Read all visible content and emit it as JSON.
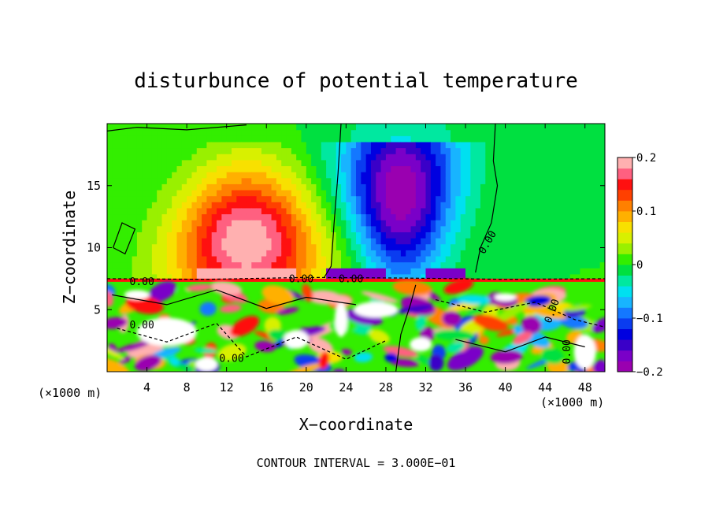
{
  "chart_data": {
    "type": "heatmap",
    "title": "disturbunce of potential temperature",
    "xlabel": "X−coordinate",
    "ylabel": "Z−coordinate",
    "x_unit_left": "(×1000 m)",
    "x_unit_right": "(×1000 m)",
    "xlim": [
      0,
      50
    ],
    "ylim": [
      0,
      20
    ],
    "x_ticks": [
      4,
      8,
      12,
      16,
      20,
      24,
      28,
      32,
      36,
      40,
      44,
      48
    ],
    "y_ticks": [
      5,
      10,
      15
    ],
    "colorbar": {
      "range": [
        -0.2,
        0.2
      ],
      "tick_values": [
        0.2,
        0.1,
        0,
        -0.1,
        -0.2
      ],
      "tick_labels": [
        "0.2",
        "0.1",
        "0",
        "−0.1",
        "−0.2"
      ],
      "levels": [
        "#9a00b0",
        "#7a00c8",
        "#3a00c8",
        "#0000e0",
        "#0a3cf0",
        "#1478ff",
        "#18b4ff",
        "#00e0f0",
        "#00e8a0",
        "#00e040",
        "#33ee00",
        "#99f000",
        "#d8f000",
        "#f8e000",
        "#ffb000",
        "#ff8000",
        "#ff4000",
        "#ff1010",
        "#ff6080",
        "#ffb0b0"
      ]
    },
    "contour_label": "0.00",
    "contour_interval_text": "CONTOUR INTERVAL = 3.000E−01",
    "features": [
      {
        "name": "warm anomaly",
        "x_center": 14,
        "z_center": 10.5,
        "peak": 0.2
      },
      {
        "name": "cold anomaly",
        "x_center": 29.5,
        "z_center": 14.5,
        "peak": -0.2
      }
    ]
  }
}
